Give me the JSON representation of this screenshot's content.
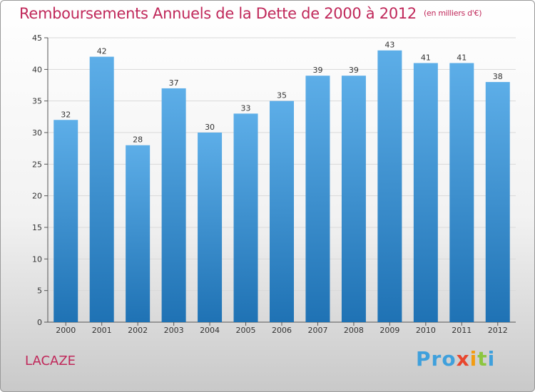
{
  "header": {
    "title": "Remboursements Annuels de la Dette de 2000 à 2012",
    "unit": "(en milliers d'€)"
  },
  "commune": "LACAZE",
  "logo": {
    "text": "Proxiti"
  },
  "colors": {
    "bar_top": "#5daee8",
    "bar_bottom": "#1f72b4",
    "title": "#c0285a"
  },
  "chart_data": {
    "type": "bar",
    "title": "Remboursements Annuels de la Dette de 2000 à 2012",
    "subtitle": "(en milliers d'€)",
    "categories": [
      "2000",
      "2001",
      "2002",
      "2003",
      "2004",
      "2005",
      "2006",
      "2007",
      "2008",
      "2009",
      "2010",
      "2011",
      "2012"
    ],
    "values": [
      32,
      42,
      28,
      37,
      30,
      33,
      35,
      39,
      39,
      43,
      41,
      41,
      38
    ],
    "ylim": [
      0,
      45
    ],
    "yticks": [
      0,
      5,
      10,
      15,
      20,
      25,
      30,
      35,
      40,
      45
    ],
    "grid": true,
    "data_labels": true
  }
}
